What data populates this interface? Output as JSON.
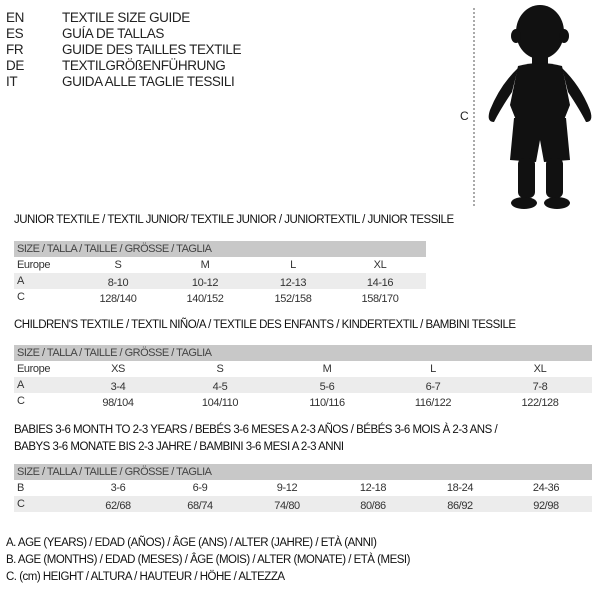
{
  "header_languages": [
    {
      "code": "EN",
      "text": "TEXTILE SIZE GUIDE"
    },
    {
      "code": "ES",
      "text": "GUÍA DE TALLAS"
    },
    {
      "code": "FR",
      "text": "GUIDE DES TAILLES TEXTILE"
    },
    {
      "code": "DE",
      "text": "TEXTILGRÖßENFÜHRUNG"
    },
    {
      "code": "IT",
      "text": "GUIDA ALLE TAGLIE TESSILI"
    }
  ],
  "figure_label": "C",
  "tables": [
    {
      "title": "JUNIOR TEXTILE / TEXTIL JUNIOR/ TEXTILE JUNIOR / JUNIORTEXTIL / JUNIOR TESSILE",
      "header": "SIZE / TALLA / TAILLE / GRÖSSE / TAGLIA",
      "rows": [
        {
          "label": "Europe",
          "values": [
            "S",
            "M",
            "L",
            "XL"
          ]
        },
        {
          "label": "A",
          "values": [
            "8-10",
            "10-12",
            "12-13",
            "14-16"
          ]
        },
        {
          "label": "C",
          "values": [
            "128/140",
            "140/152",
            "152/158",
            "158/170"
          ]
        }
      ]
    },
    {
      "title": "CHILDREN'S TEXTILE / TEXTIL NIÑO/A / TEXTILE DES ENFANTS / KINDERTEXTIL / BAMBINI TESSILE",
      "header": "SIZE / TALLA / TAILLE / GRÖSSE / TAGLIA",
      "rows": [
        {
          "label": "Europe",
          "values": [
            "XS",
            "S",
            "M",
            "L",
            "XL"
          ]
        },
        {
          "label": "A",
          "values": [
            "3-4",
            "4-5",
            "5-6",
            "6-7",
            "7-8"
          ]
        },
        {
          "label": "C",
          "values": [
            "98/104",
            "104/110",
            "110/116",
            "116/122",
            "122/128"
          ]
        }
      ]
    },
    {
      "title": "BABIES 3-6 MONTH TO 2-3 YEARS / BEBÉS 3-6 MESES A 2-3 AÑOS / BÉBÉS 3-6 MOIS À 2-3 ANS /",
      "title2": "BABYS 3-6 MONATE BIS 2-3 JAHRE / BAMBINI 3-6 MESI A 2-3 ANNI",
      "header": "SIZE / TALLA / TAILLE / GRÖSSE / TAGLIA",
      "rows": [
        {
          "label": "B",
          "values": [
            "3-6",
            "6-9",
            "9-12",
            "12-18",
            "18-24",
            "24-36"
          ]
        },
        {
          "label": "C",
          "values": [
            "62/68",
            "68/74",
            "74/80",
            "80/86",
            "86/92",
            "92/98"
          ]
        }
      ]
    }
  ],
  "legend": [
    "A. AGE (YEARS) / EDAD (AÑOS) / ÂGE (ANS) / ALTER (JAHRE) / ETÀ (ANNI)",
    "B. AGE (MONTHS) / EDAD (MESES) / ÂGE (MOIS) / ALTER (MONATE) / ETÀ (MESI)",
    "C. (cm) HEIGHT / ALTURA / HAUTEUR / HÖHE / ALTEZZA"
  ]
}
